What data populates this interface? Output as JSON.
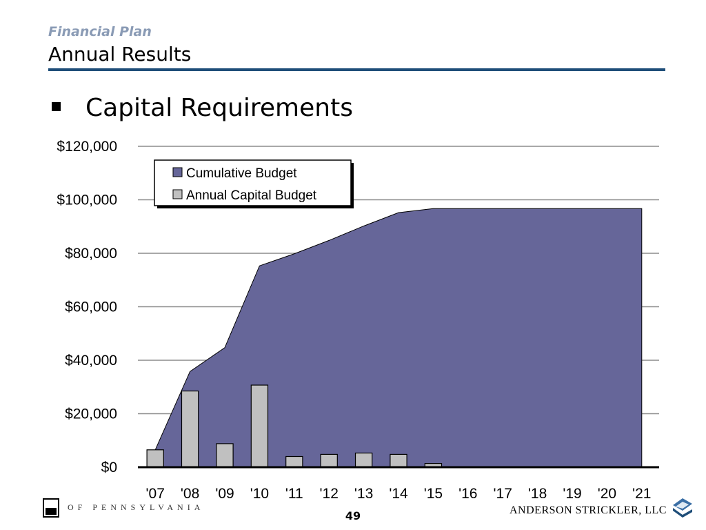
{
  "header": {
    "kicker": "Financial Plan",
    "title": "Annual Results"
  },
  "section": {
    "heading": "Capital Requirements"
  },
  "chart_data": {
    "type": "bar",
    "title": "",
    "xlabel": "",
    "ylabel": "",
    "categories": [
      "'07",
      "'08",
      "'09",
      "'10",
      "'11",
      "'12",
      "'13",
      "'14",
      "'15",
      "'16",
      "'17",
      "'18",
      "'19",
      "'20",
      "'21"
    ],
    "ylim": [
      0,
      120000
    ],
    "yticks": [
      0,
      20000,
      40000,
      60000,
      80000,
      100000,
      120000
    ],
    "ytick_labels": [
      "$0",
      "$20,000",
      "$40,000",
      "$60,000",
      "$80,000",
      "$100,000",
      "$120,000"
    ],
    "grid": true,
    "legend_placement": "top-left",
    "series": [
      {
        "name": "Cumulative Budget",
        "kind": "area",
        "color": "#666699",
        "values": [
          6500,
          35800,
          44700,
          75300,
          79800,
          84800,
          90200,
          95200,
          96700,
          96700,
          96700,
          96700,
          96700,
          96700,
          96700
        ]
      },
      {
        "name": "Annual Capital Budget",
        "kind": "bar",
        "color": "#c0c0c0",
        "values": [
          6500,
          28500,
          8800,
          30700,
          4000,
          4800,
          5300,
          4800,
          1400,
          0,
          0,
          0,
          0,
          0,
          0
        ]
      }
    ]
  },
  "footer": {
    "state_text": "OF  PENNSYLVANIA",
    "page_number": "49",
    "firm": "ANDERSON STRICKLER, LLC"
  }
}
